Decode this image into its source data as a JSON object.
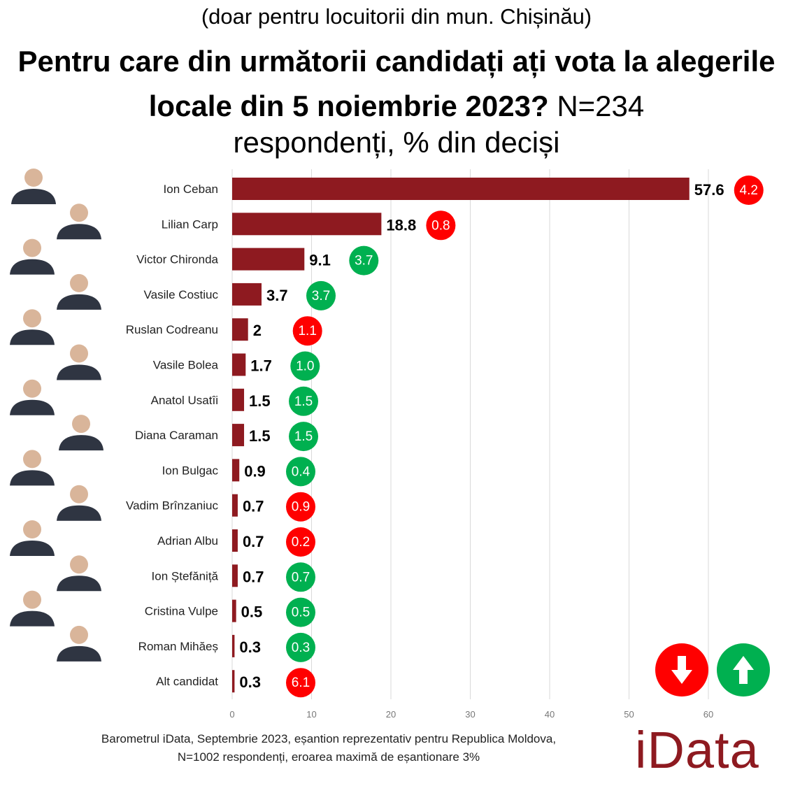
{
  "header": {
    "subtitle": "(doar pentru locuitorii din mun. Chișinău)",
    "title_bold": "Pentru care din următorii candidați ați vota la alegerile locale din 5 noiembrie 2023?",
    "title_normal": "N=234",
    "title_line3": "respondenți, % din deciși"
  },
  "chart_data": {
    "type": "bar",
    "orientation": "horizontal",
    "categories": [
      "Ion Ceban",
      "Lilian Carp",
      "Victor Chironda",
      "Vasile Costiuc",
      "Ruslan Codreanu",
      "Vasile Bolea",
      "Anatol Usatîi",
      "Diana Caraman",
      "Ion Bulgac",
      "Vadim Brînzaniuc",
      "Adrian Albu",
      "Ion Ștefăniță",
      "Cristina Vulpe",
      "Roman Mihăeș",
      "Alt candidat"
    ],
    "values": [
      57.6,
      18.8,
      9.1,
      3.7,
      2,
      1.7,
      1.5,
      1.5,
      0.9,
      0.7,
      0.7,
      0.7,
      0.5,
      0.3,
      0.3
    ],
    "change": [
      {
        "label": "4.2",
        "direction": "down"
      },
      {
        "label": "0.8",
        "direction": "down"
      },
      {
        "label": "3.7",
        "direction": "up"
      },
      {
        "label": "3.7",
        "direction": "up"
      },
      {
        "label": "1.1",
        "direction": "down"
      },
      {
        "label": "1.0",
        "direction": "up"
      },
      {
        "label": "1.5",
        "direction": "up"
      },
      {
        "label": "1.5",
        "direction": "up"
      },
      {
        "label": "0.4",
        "direction": "up"
      },
      {
        "label": "0.9",
        "direction": "down"
      },
      {
        "label": "0.2",
        "direction": "down"
      },
      {
        "label": "0.7",
        "direction": "up"
      },
      {
        "label": "0.5",
        "direction": "up"
      },
      {
        "label": "0.3",
        "direction": "up"
      },
      {
        "label": "6.1",
        "direction": "down"
      }
    ],
    "xticks": [
      0,
      10,
      20,
      30,
      40,
      50,
      60
    ],
    "xlim": [
      0,
      60
    ],
    "grid": true,
    "colors": {
      "bar": "#8e1a20",
      "up": "#00b050",
      "down": "#ff0000",
      "grid": "#d9d9d9"
    }
  },
  "legend": {
    "down_icon": "arrow-down-icon",
    "up_icon": "arrow-up-icon"
  },
  "footer": {
    "line1": "Barometrul iData, Septembrie 2023, eșantion reprezentativ pentru Republica Moldova,",
    "line2": "N=1002 respondenți, eroarea maximă de eșantionare 3%",
    "logo": "iData"
  }
}
